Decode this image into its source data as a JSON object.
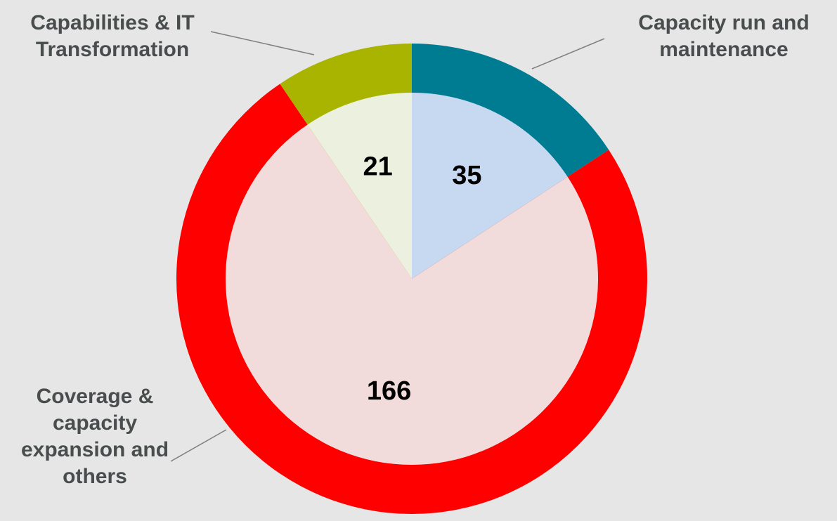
{
  "chart_data": {
    "type": "pie",
    "categories": [
      "Capacity run and maintenance",
      "Coverage & capacity expansion and others",
      "Capabilities & IT Transformation"
    ],
    "values": [
      35,
      166,
      21
    ],
    "colors": [
      "#007c92",
      "#ff0000",
      "#a8b400"
    ],
    "inner_colors": [
      "#c6d9f1",
      "#f2dcdb",
      "#ebf1de"
    ]
  }
}
